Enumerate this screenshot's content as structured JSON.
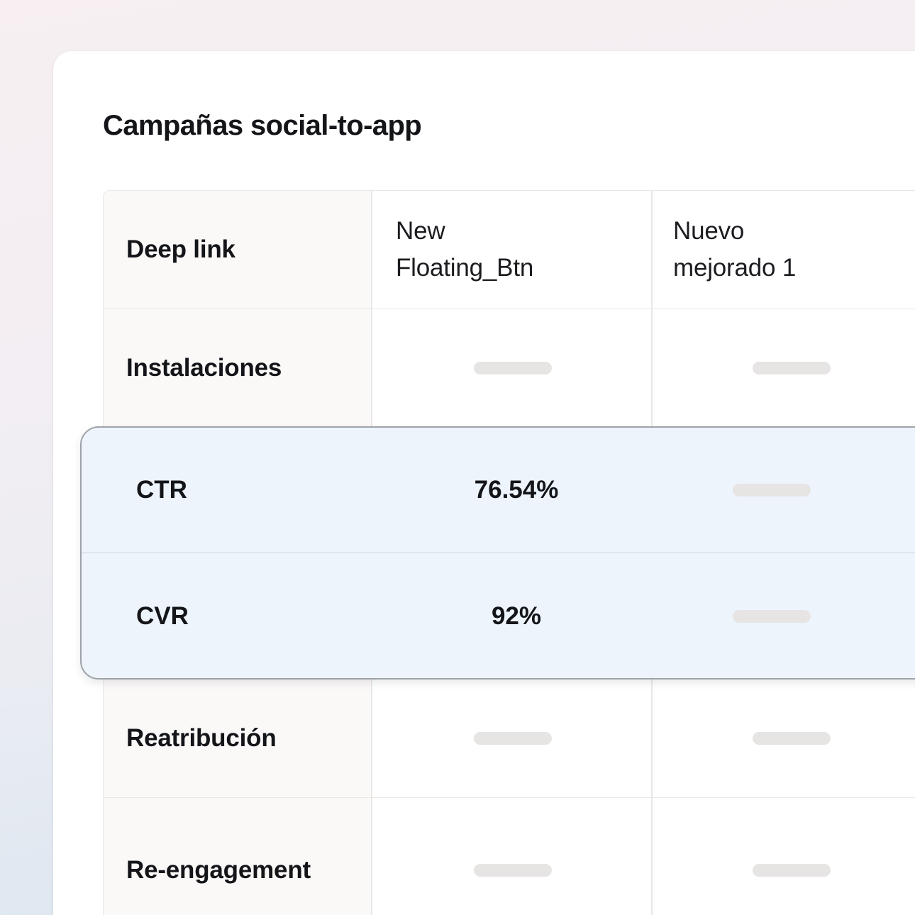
{
  "page": {
    "title": "Campañas social-to-app"
  },
  "table": {
    "corner_header": "Deep link",
    "column_headers": [
      "New Floating_Btn",
      "Nuevo mejorado 1"
    ],
    "rows": [
      {
        "label": "Instalaciones",
        "cells": [
          {
            "type": "placeholder"
          },
          {
            "type": "placeholder"
          }
        ],
        "highlighted": false
      },
      {
        "label": "CTR",
        "cells": [
          {
            "type": "text",
            "text": "76.54%"
          },
          {
            "type": "placeholder"
          }
        ],
        "highlighted": true
      },
      {
        "label": "CVR",
        "cells": [
          {
            "type": "text",
            "text": "92%"
          },
          {
            "type": "placeholder"
          }
        ],
        "highlighted": true
      },
      {
        "label": "Reatribución",
        "cells": [
          {
            "type": "placeholder"
          },
          {
            "type": "placeholder"
          }
        ],
        "highlighted": false
      },
      {
        "label": "Re-engagement",
        "cells": [
          {
            "type": "placeholder"
          },
          {
            "type": "placeholder"
          }
        ],
        "highlighted": false
      }
    ]
  },
  "colors": {
    "highlight_fill": "#edf4fc",
    "highlight_border": "#9ea3a9",
    "placeholder_bar": "#e7e4e4",
    "table_border": "#eae7e7",
    "first_column_bg": "#fbf8f8",
    "text": "#141519",
    "background_top": "#f7eff1",
    "background_bottom": "#d9e4f0"
  }
}
